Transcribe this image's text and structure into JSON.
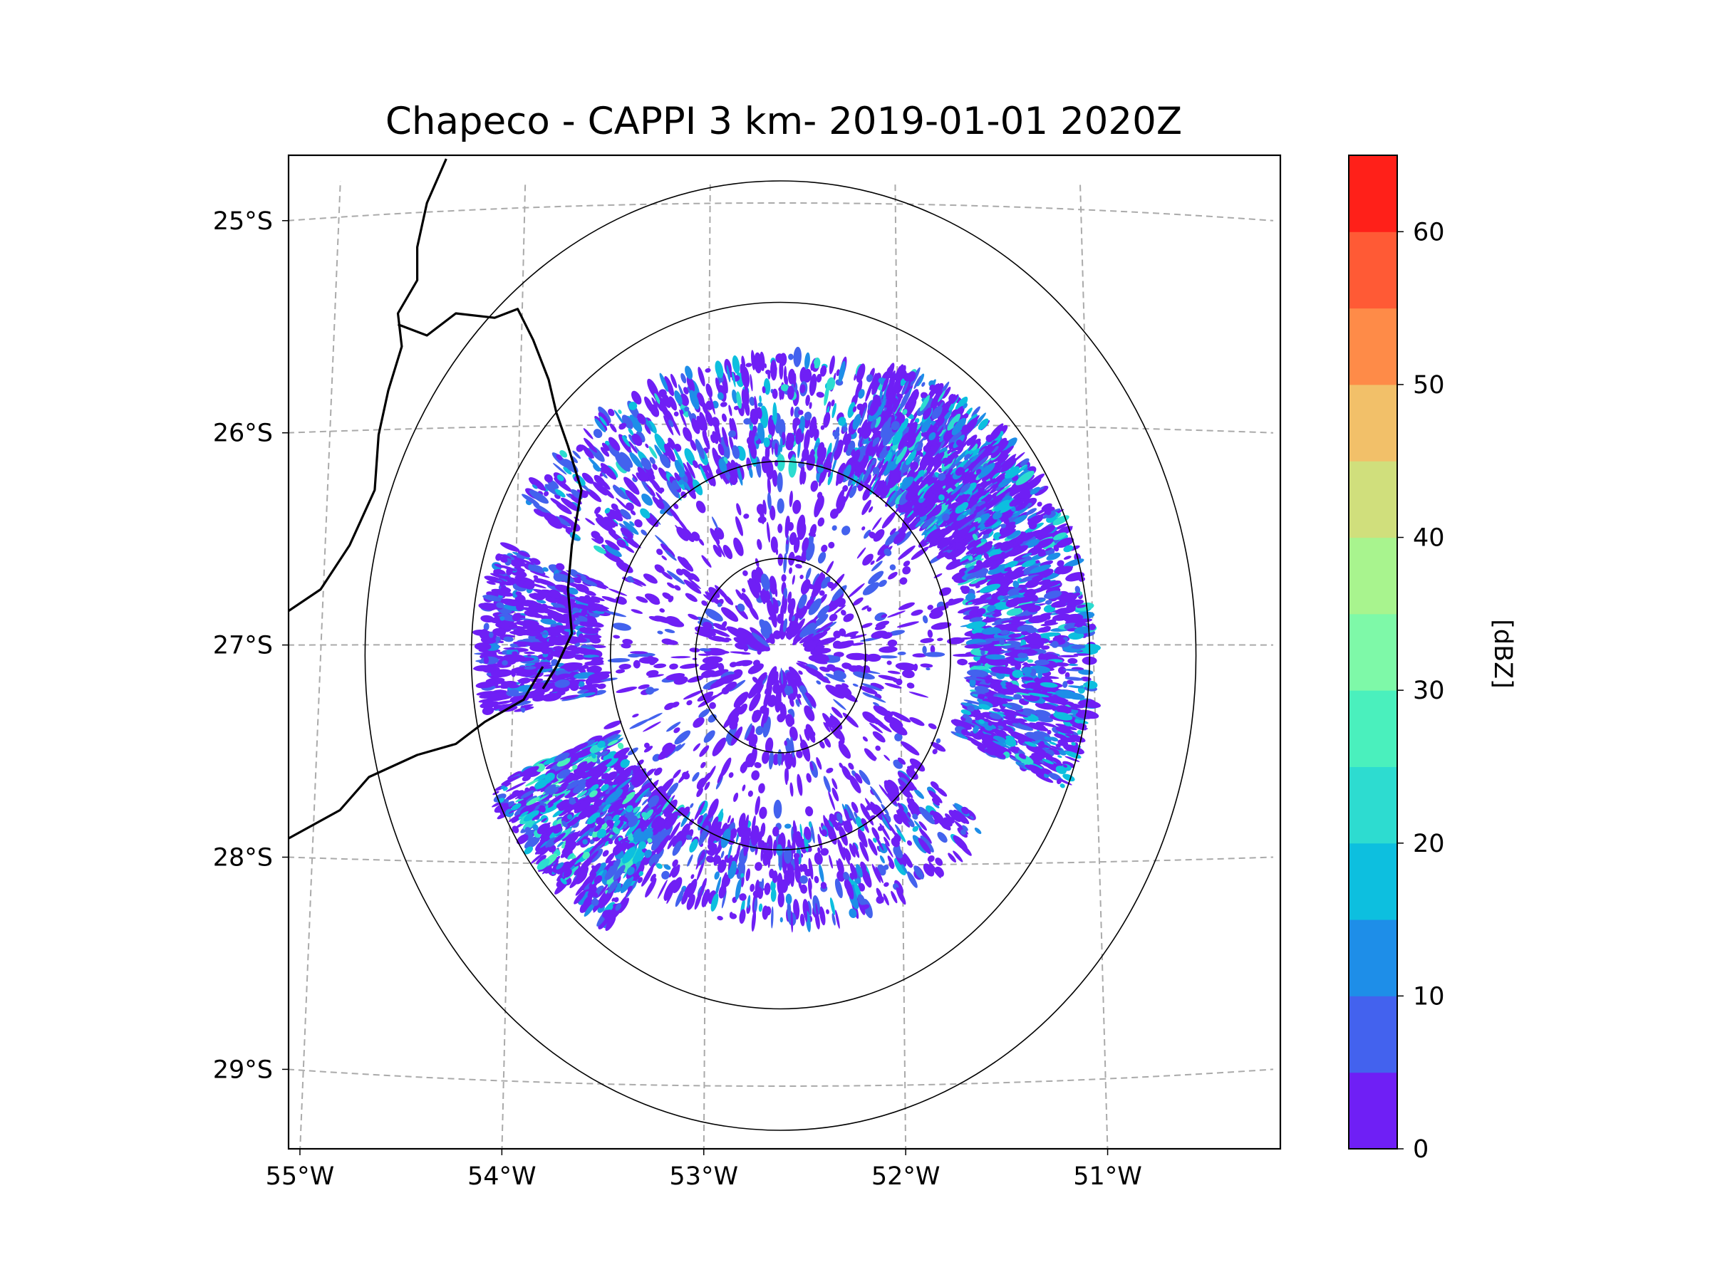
{
  "chart_data": {
    "type": "map",
    "title": "Chapeco - CAPPI 3 km- 2019-01-01 2020Z",
    "radar": {
      "name": "Chapeco",
      "product": "CAPPI",
      "altitude": "3 km",
      "datetime": "2019-01-01 2020Z"
    },
    "lon_range": [
      -55.17,
      -50.05
    ],
    "lat_range": [
      -29.3,
      -24.8
    ],
    "lon_ticks": [
      {
        "value": -55,
        "label": "55°W"
      },
      {
        "value": -54,
        "label": "54°W"
      },
      {
        "value": -53,
        "label": "53°W"
      },
      {
        "value": -52,
        "label": "52°W"
      },
      {
        "value": -51,
        "label": "51°W"
      }
    ],
    "lat_ticks": [
      {
        "value": -25,
        "label": "25°S"
      },
      {
        "value": -26,
        "label": "26°S"
      },
      {
        "value": -27,
        "label": "27°S"
      },
      {
        "value": -28,
        "label": "28°S"
      },
      {
        "value": -29,
        "label": "29°S"
      }
    ],
    "gridlines": true,
    "range_rings": [
      {
        "center": [
          -52.62,
          -27.05
        ],
        "radius_deg": 0.44
      },
      {
        "center": [
          -52.62,
          -27.05
        ],
        "radius_deg": 0.88
      },
      {
        "center": [
          -52.62,
          -27.05
        ],
        "radius_deg": 1.6
      },
      {
        "center": [
          -52.62,
          -27.05
        ],
        "radius_deg": 2.15
      }
    ],
    "colorbar": {
      "label": "[dBZ]",
      "min": 0,
      "max": 65,
      "tick_values": [
        0,
        10,
        20,
        30,
        40,
        50,
        60
      ],
      "tick_labels": [
        "0",
        "10",
        "20",
        "30",
        "40",
        "50",
        "60"
      ],
      "bins": [
        {
          "from": 0,
          "to": 5,
          "color": "#6f1ff5"
        },
        {
          "from": 5,
          "to": 10,
          "color": "#4362ee"
        },
        {
          "from": 10,
          "to": 15,
          "color": "#1e8ee8"
        },
        {
          "from": 15,
          "to": 20,
          "color": "#0dbfdf"
        },
        {
          "from": 20,
          "to": 25,
          "color": "#2ddcd0"
        },
        {
          "from": 25,
          "to": 30,
          "color": "#4af0bd"
        },
        {
          "from": 30,
          "to": 35,
          "color": "#7ef9a8"
        },
        {
          "from": 35,
          "to": 40,
          "color": "#a8f48e"
        },
        {
          "from": 40,
          "to": 45,
          "color": "#d0df7c"
        },
        {
          "from": 45,
          "to": 50,
          "color": "#f2c069"
        },
        {
          "from": 50,
          "to": 55,
          "color": "#fe8b48"
        },
        {
          "from": 55,
          "to": 60,
          "color": "#ff5a35"
        },
        {
          "from": 60,
          "to": 65,
          "color": "#ff2019"
        }
      ]
    },
    "echo_regions": [
      {
        "name": "north-arc",
        "az_from": 300,
        "az_to": 60,
        "r_from": 0.95,
        "r_to": 1.55,
        "density": 0.32,
        "dbz_max": 22
      },
      {
        "name": "northeast-mass",
        "az_from": 20,
        "az_to": 115,
        "r_from": 1.0,
        "r_to": 1.62,
        "density": 0.75,
        "dbz_max": 25
      },
      {
        "name": "west-band",
        "az_from": 258,
        "az_to": 292,
        "r_from": 0.95,
        "r_to": 1.55,
        "density": 0.7,
        "dbz_max": 15
      },
      {
        "name": "southwest-mass",
        "az_from": 212,
        "az_to": 246,
        "r_from": 0.95,
        "r_to": 1.65,
        "density": 0.85,
        "dbz_max": 28
      },
      {
        "name": "south-arc",
        "az_from": 130,
        "az_to": 212,
        "r_from": 0.88,
        "r_to": 1.4,
        "density": 0.28,
        "dbz_max": 18
      },
      {
        "name": "inner-scatter",
        "az_from": 0,
        "az_to": 360,
        "r_from": 0.1,
        "r_to": 0.95,
        "density": 0.06,
        "dbz_max": 10
      }
    ],
    "borders": [
      {
        "name": "border-north",
        "points": [
          [
            -54.35,
            -24.8
          ],
          [
            -54.45,
            -25.0
          ],
          [
            -54.5,
            -25.2
          ],
          [
            -54.5,
            -25.35
          ],
          [
            -54.6,
            -25.5
          ],
          [
            -54.58,
            -25.65
          ],
          [
            -54.65,
            -25.85
          ],
          [
            -54.7,
            -26.05
          ],
          [
            -54.72,
            -26.3
          ],
          [
            -54.85,
            -26.55
          ],
          [
            -55.0,
            -26.75
          ],
          [
            -55.17,
            -26.85
          ]
        ]
      },
      {
        "name": "border-south",
        "points": [
          [
            -53.85,
            -27.1
          ],
          [
            -53.95,
            -27.25
          ],
          [
            -54.15,
            -27.35
          ],
          [
            -54.3,
            -27.45
          ],
          [
            -54.5,
            -27.5
          ],
          [
            -54.75,
            -27.6
          ],
          [
            -54.9,
            -27.75
          ],
          [
            -55.17,
            -27.88
          ]
        ]
      },
      {
        "name": "border-sc-pr",
        "points": [
          [
            -54.6,
            -25.55
          ],
          [
            -54.45,
            -25.6
          ],
          [
            -54.3,
            -25.5
          ],
          [
            -54.1,
            -25.52
          ],
          [
            -53.98,
            -25.48
          ],
          [
            -53.9,
            -25.62
          ],
          [
            -53.82,
            -25.8
          ],
          [
            -53.78,
            -25.95
          ],
          [
            -53.72,
            -26.1
          ],
          [
            -53.65,
            -26.3
          ],
          [
            -53.7,
            -26.55
          ],
          [
            -53.72,
            -26.75
          ],
          [
            -53.7,
            -26.95
          ],
          [
            -53.78,
            -27.1
          ],
          [
            -53.85,
            -27.2
          ]
        ]
      }
    ]
  }
}
